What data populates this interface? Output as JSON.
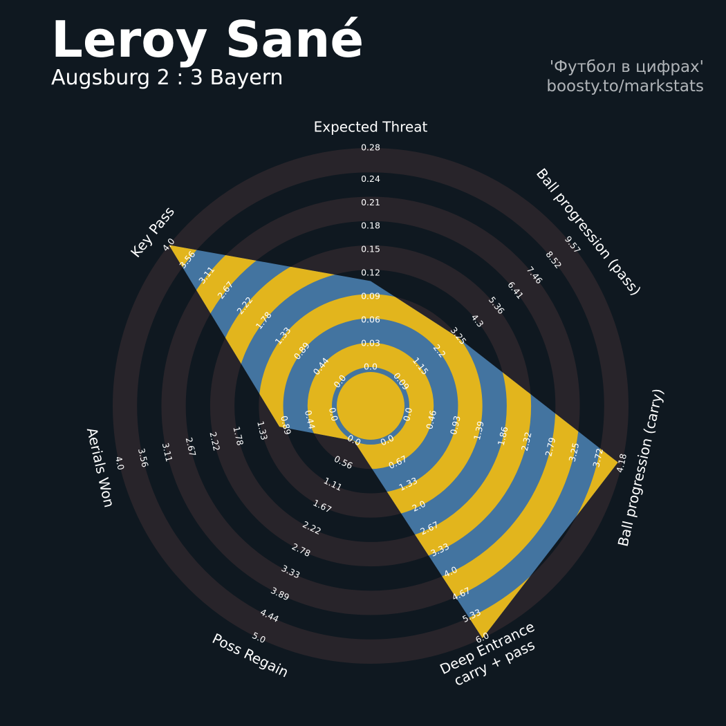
{
  "chart_data": {
    "type": "radar",
    "title": "Leroy Sané",
    "subtitle": "Augsburg 2 : 3 Bayern",
    "credits": [
      "'Футбол в цифрах'",
      "boosty.to/markstats"
    ],
    "axes": [
      {
        "label": [
          "Expected Threat"
        ],
        "lim": [
          0,
          0.28
        ],
        "ticks": [
          {
            "value": 0,
            "label": "0.0"
          },
          0.03,
          0.06,
          0.09,
          0.12,
          0.15,
          0.18,
          0.21,
          0.24,
          0.28
        ]
      },
      {
        "label": [
          "Ball progression (pass)"
        ],
        "lim": [
          0.09,
          9.57
        ],
        "ticks": [
          0.09,
          1.15,
          2.2,
          3.25,
          4.3,
          5.36,
          6.41,
          7.46,
          8.52,
          9.57
        ]
      },
      {
        "label": [
          "Ball progression (carry)"
        ],
        "lim": [
          0,
          4.18
        ],
        "ticks": [
          {
            "value": 0,
            "label": "0.0"
          },
          0.46,
          0.93,
          1.39,
          1.86,
          2.32,
          2.79,
          3.25,
          3.72,
          4.18
        ]
      },
      {
        "label": [
          "Deep Entrance",
          "carry + pass"
        ],
        "lim": [
          0,
          6
        ],
        "ticks": [
          {
            "value": 0,
            "label": "0.0"
          },
          0.67,
          1.33,
          {
            "value": 2,
            "label": "2.0"
          },
          2.67,
          3.33,
          {
            "value": 4,
            "label": "4.0"
          },
          4.67,
          5.33,
          {
            "value": 6,
            "label": "6.0"
          }
        ]
      },
      {
        "label": [
          "Poss Regain"
        ],
        "lim": [
          0,
          5
        ],
        "ticks": [
          {
            "value": 0,
            "label": "0.0"
          },
          0.56,
          1.11,
          1.67,
          2.22,
          2.78,
          3.33,
          3.89,
          4.44,
          {
            "value": 5,
            "label": "5.0"
          }
        ]
      },
      {
        "label": [
          "Aerials Won"
        ],
        "lim": [
          0,
          4
        ],
        "ticks": [
          {
            "value": 0,
            "label": "0.0"
          },
          0.44,
          0.89,
          1.33,
          1.78,
          2.22,
          2.67,
          3.11,
          3.56,
          {
            "value": 4,
            "label": "4.0"
          }
        ]
      },
      {
        "label": [
          "Key Pass"
        ],
        "lim": [
          0,
          4
        ],
        "ticks": [
          {
            "value": 0,
            "label": "0.0"
          },
          0.44,
          0.89,
          1.33,
          1.78,
          2.22,
          2.67,
          3.11,
          3.56,
          {
            "value": 4,
            "label": "4.0"
          }
        ]
      }
    ],
    "series": [
      {
        "color": "#4374a0",
        "values": [
          0.11,
          3.2,
          4.1,
          6,
          0,
          1,
          4
        ]
      }
    ],
    "ring_color": "#e2b51d",
    "ring_background": "#28242a"
  }
}
